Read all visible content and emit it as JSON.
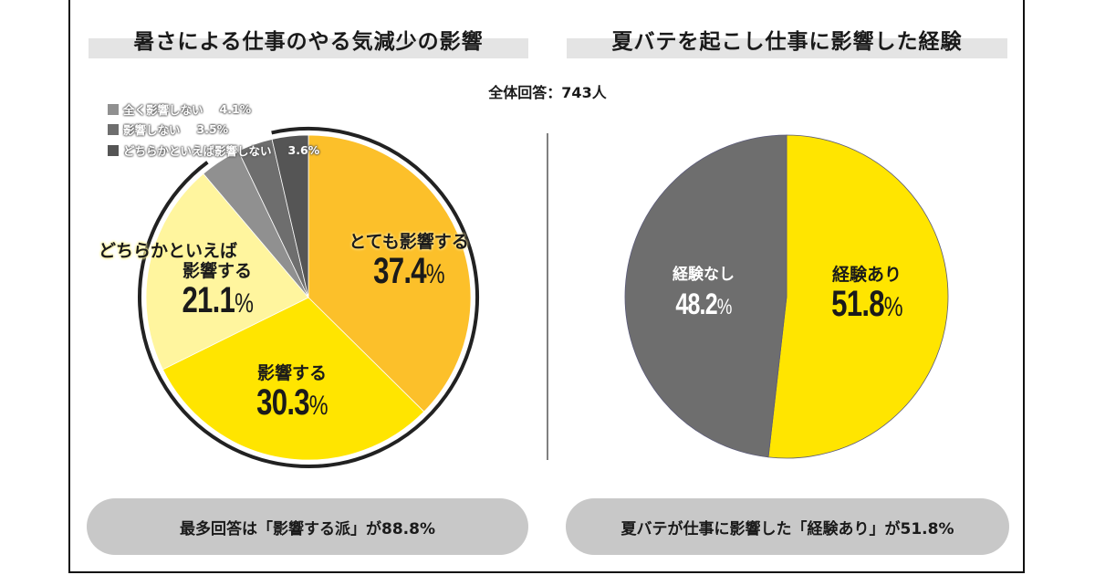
{
  "left_panel": {
    "title": "暑さによる仕事のやる気減少の影響",
    "summary": "最多回答は「影響する派」が88.8%"
  },
  "right_panel": {
    "title": "夏バテを起こし仕事に影響した経験",
    "summary": "夏バテが仕事に影響した「経験あり」が51.8%"
  },
  "total_respondents": "全体回答：743人",
  "chart_data": [
    {
      "type": "pie",
      "title": "暑さによる仕事のやる気減少の影響",
      "categories": [
        "とても影響する",
        "影響する",
        "どちらかといえば影響する",
        "全く影響しない",
        "影響しない",
        "どちらかといえば影響しない"
      ],
      "values": [
        37.4,
        30.3,
        21.1,
        4.1,
        3.5,
        3.6
      ],
      "labels": [
        "37.4%",
        "30.3%",
        "21.1%",
        "4.1%",
        "3.5%",
        "3.6%"
      ],
      "colors": [
        "#fcc02a",
        "#ffe500",
        "#fff59e",
        "#909090",
        "#6e6e6e",
        "#555555"
      ],
      "start": "12 o'clock",
      "direction": "clockwise",
      "legend": [
        {
          "label": "全く影響しない",
          "value": "4.1%",
          "color": "#909090"
        },
        {
          "label": "影響しない",
          "value": "3.5%",
          "color": "#6e6e6e"
        },
        {
          "label": "どちらかといえば影響しない",
          "value": "3.6%",
          "color": "#555555"
        }
      ],
      "slice_labels": [
        {
          "name": "とても影響する",
          "value": "37.4"
        },
        {
          "name": "影響する",
          "value": "30.3"
        },
        {
          "name_line1": "どちらかといえば",
          "name_line2": "影響する",
          "value": "21.1"
        }
      ],
      "percent_sign": "%",
      "legend_placement": "top-left"
    },
    {
      "type": "pie",
      "title": "夏バテを起こし仕事に影響した経験",
      "categories": [
        "経験あり",
        "経験なし"
      ],
      "values": [
        51.8,
        48.2
      ],
      "labels": [
        "51.8%",
        "48.2%"
      ],
      "colors": [
        "#ffe500",
        "#6e6e6e"
      ],
      "start": "12 o'clock",
      "direction": "clockwise",
      "slice_labels": [
        {
          "name": "経験あり",
          "value": "51.8"
        },
        {
          "name": "経験なし",
          "value": "48.2"
        }
      ],
      "percent_sign": "%"
    }
  ]
}
